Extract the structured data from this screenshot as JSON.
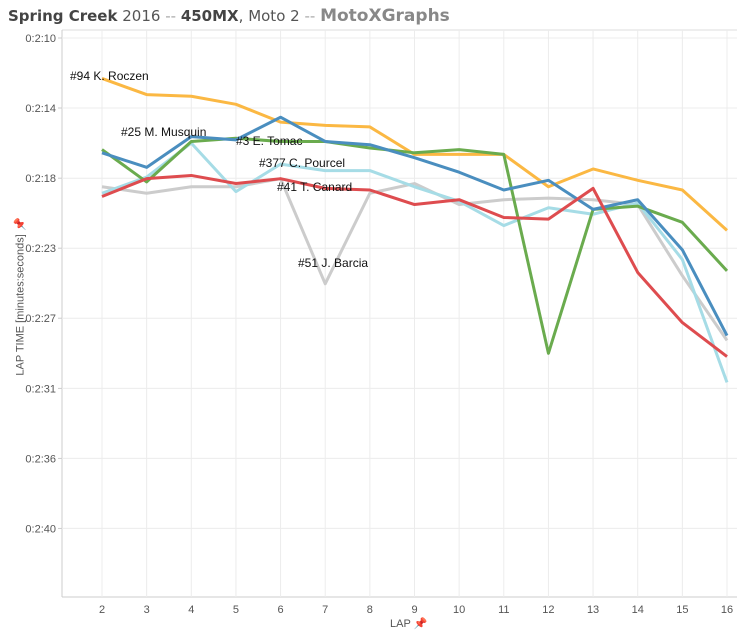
{
  "title": {
    "event": "Spring Creek",
    "year": "2016",
    "sep1": "--",
    "class": "450MX",
    "comma": ",",
    "moto": "Moto 2",
    "sep2": "--",
    "brand": "MotoXGraphs"
  },
  "chart_data": {
    "type": "line",
    "xlabel": "LAP",
    "ylabel": "LAP TIME [minutes:seconds]",
    "x": [
      2,
      3,
      4,
      5,
      6,
      7,
      8,
      9,
      10,
      11,
      12,
      13,
      14,
      15,
      16
    ],
    "y_unit": "seconds",
    "ylim": [
      130,
      164.4
    ],
    "y_ticks": [
      130,
      134.33,
      138.67,
      143,
      147.33,
      151.67,
      156,
      160.33
    ],
    "y_tick_labels": [
      "0:2:10",
      "0:2:14",
      "0:2:18",
      "0:2:23",
      "0:2:27",
      "0:2:31",
      "0:2:36",
      "0:2:40"
    ],
    "x_tick_labels": [
      "2",
      "3",
      "4",
      "5",
      "6",
      "7",
      "8",
      "9",
      "10",
      "11",
      "12",
      "13",
      "14",
      "15",
      "16"
    ],
    "grid": true,
    "series": [
      {
        "name": "#51 J. Barcia",
        "color": "#cccccc",
        "values": [
          139.2,
          139.6,
          139.2,
          139.2,
          138.7,
          145.2,
          139.6,
          139.0,
          140.3,
          140.0,
          139.9,
          140.0,
          140.3,
          144.7,
          148.7
        ]
      },
      {
        "name": "#377 C. Pourcel",
        "color": "#a6dce6",
        "values": [
          139.6,
          138.6,
          136.5,
          139.5,
          137.8,
          138.2,
          138.2,
          139.2,
          140.1,
          141.6,
          140.5,
          140.9,
          140.2,
          143.7,
          151.3
        ]
      },
      {
        "name": "#94 K. Roczen",
        "color": "#fbb843",
        "values": [
          132.5,
          133.5,
          133.6,
          134.1,
          135.2,
          135.4,
          135.5,
          137.2,
          137.2,
          137.2,
          139.2,
          138.1,
          138.8,
          139.4,
          141.9
        ]
      },
      {
        "name": "#3 E. Tomac",
        "color": "#6aab4e",
        "values": [
          136.9,
          138.9,
          136.4,
          136.2,
          136.4,
          136.4,
          136.8,
          137.1,
          136.9,
          137.2,
          149.5,
          140.6,
          140.4,
          141.4,
          144.4
        ]
      },
      {
        "name": "#25 M. Musquin",
        "color": "#4a8ebf",
        "values": [
          137.1,
          138.0,
          136.1,
          136.3,
          134.9,
          136.4,
          136.6,
          137.4,
          138.3,
          139.4,
          138.8,
          140.6,
          140.0,
          143.1,
          148.4
        ]
      },
      {
        "name": "#41 T. Canard",
        "color": "#de4c4f",
        "values": [
          139.8,
          138.7,
          138.5,
          139.0,
          138.7,
          139.3,
          139.4,
          140.3,
          140.0,
          141.1,
          141.2,
          139.3,
          144.5,
          147.6,
          149.7
        ]
      }
    ]
  }
}
